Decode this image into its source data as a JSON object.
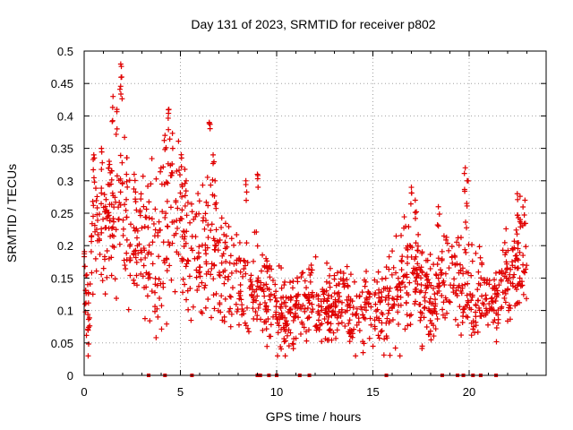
{
  "chart_data": {
    "type": "scatter",
    "title": "Day 131 of 2023, SRMTID for receiver p802",
    "xlabel": "GPS time / hours",
    "ylabel": "SRMTID / TECUs",
    "xlim": [
      0,
      24
    ],
    "ylim": [
      0,
      0.5
    ],
    "xticks": [
      0,
      5,
      10,
      15,
      20
    ],
    "yticks": [
      0,
      0.05,
      0.1,
      0.15,
      0.2,
      0.25,
      0.3,
      0.35,
      0.4,
      0.45,
      0.5
    ],
    "grid": true,
    "marker": "plus",
    "color": "#e00000",
    "trend": [
      [
        0.0,
        0.16
      ],
      [
        0.2,
        0.09
      ],
      [
        0.5,
        0.26
      ],
      [
        1.0,
        0.23
      ],
      [
        1.5,
        0.25
      ],
      [
        2.0,
        0.27
      ],
      [
        2.5,
        0.22
      ],
      [
        3.0,
        0.2
      ],
      [
        3.5,
        0.18
      ],
      [
        4.0,
        0.2
      ],
      [
        4.5,
        0.27
      ],
      [
        5.0,
        0.23
      ],
      [
        5.5,
        0.2
      ],
      [
        6.0,
        0.17
      ],
      [
        6.5,
        0.19
      ],
      [
        7.0,
        0.17
      ],
      [
        7.5,
        0.15
      ],
      [
        8.0,
        0.14
      ],
      [
        8.5,
        0.13
      ],
      [
        9.0,
        0.14
      ],
      [
        9.5,
        0.12
      ],
      [
        10.0,
        0.1
      ],
      [
        10.5,
        0.09
      ],
      [
        11.0,
        0.1
      ],
      [
        11.5,
        0.11
      ],
      [
        12.0,
        0.11
      ],
      [
        12.5,
        0.1
      ],
      [
        13.0,
        0.11
      ],
      [
        13.5,
        0.11
      ],
      [
        14.0,
        0.1
      ],
      [
        14.5,
        0.1
      ],
      [
        15.0,
        0.11
      ],
      [
        15.5,
        0.11
      ],
      [
        16.0,
        0.12
      ],
      [
        16.5,
        0.15
      ],
      [
        17.0,
        0.16
      ],
      [
        17.5,
        0.14
      ],
      [
        18.0,
        0.13
      ],
      [
        18.5,
        0.14
      ],
      [
        19.0,
        0.15
      ],
      [
        19.5,
        0.14
      ],
      [
        20.0,
        0.13
      ],
      [
        20.5,
        0.13
      ],
      [
        21.0,
        0.12
      ],
      [
        21.5,
        0.12
      ],
      [
        22.0,
        0.15
      ],
      [
        22.5,
        0.18
      ],
      [
        23.0,
        0.17
      ]
    ],
    "spread": [
      [
        0.0,
        0.04
      ],
      [
        1.0,
        0.07
      ],
      [
        2.0,
        0.08
      ],
      [
        3.0,
        0.07
      ],
      [
        4.0,
        0.08
      ],
      [
        5.0,
        0.08
      ],
      [
        6.0,
        0.07
      ],
      [
        7.0,
        0.06
      ],
      [
        8.0,
        0.05
      ],
      [
        9.0,
        0.05
      ],
      [
        10.0,
        0.04
      ],
      [
        11.0,
        0.04
      ],
      [
        12.0,
        0.04
      ],
      [
        13.0,
        0.04
      ],
      [
        14.0,
        0.04
      ],
      [
        15.0,
        0.04
      ],
      [
        16.0,
        0.05
      ],
      [
        17.0,
        0.06
      ],
      [
        18.0,
        0.05
      ],
      [
        19.0,
        0.05
      ],
      [
        20.0,
        0.05
      ],
      [
        21.0,
        0.04
      ],
      [
        22.0,
        0.05
      ],
      [
        23.0,
        0.05
      ]
    ],
    "peaks": [
      {
        "x": 0.5,
        "y": 0.34
      },
      {
        "x": 0.9,
        "y": 0.35
      },
      {
        "x": 1.3,
        "y": 0.33
      },
      {
        "x": 1.5,
        "y": 0.43
      },
      {
        "x": 1.7,
        "y": 0.41
      },
      {
        "x": 1.9,
        "y": 0.48
      },
      {
        "x": 1.95,
        "y": 0.46
      },
      {
        "x": 2.2,
        "y": 0.31
      },
      {
        "x": 2.6,
        "y": 0.31
      },
      {
        "x": 4.2,
        "y": 0.37
      },
      {
        "x": 4.4,
        "y": 0.41
      },
      {
        "x": 4.6,
        "y": 0.35
      },
      {
        "x": 5.3,
        "y": 0.3
      },
      {
        "x": 6.5,
        "y": 0.39
      },
      {
        "x": 6.7,
        "y": 0.34
      },
      {
        "x": 6.8,
        "y": 0.3
      },
      {
        "x": 8.4,
        "y": 0.3
      },
      {
        "x": 9.0,
        "y": 0.31
      },
      {
        "x": 17.0,
        "y": 0.29
      },
      {
        "x": 17.2,
        "y": 0.27
      },
      {
        "x": 18.4,
        "y": 0.26
      },
      {
        "x": 19.8,
        "y": 0.32
      },
      {
        "x": 19.9,
        "y": 0.3
      },
      {
        "x": 22.5,
        "y": 0.28
      },
      {
        "x": 22.9,
        "y": 0.27
      }
    ],
    "zero_markers": [
      3.35,
      4.2,
      5.6,
      9.0,
      9.15,
      9.6,
      10.0,
      11.2,
      11.7,
      15.7,
      18.6,
      19.4,
      19.7,
      20.2,
      20.6,
      21.4
    ]
  }
}
